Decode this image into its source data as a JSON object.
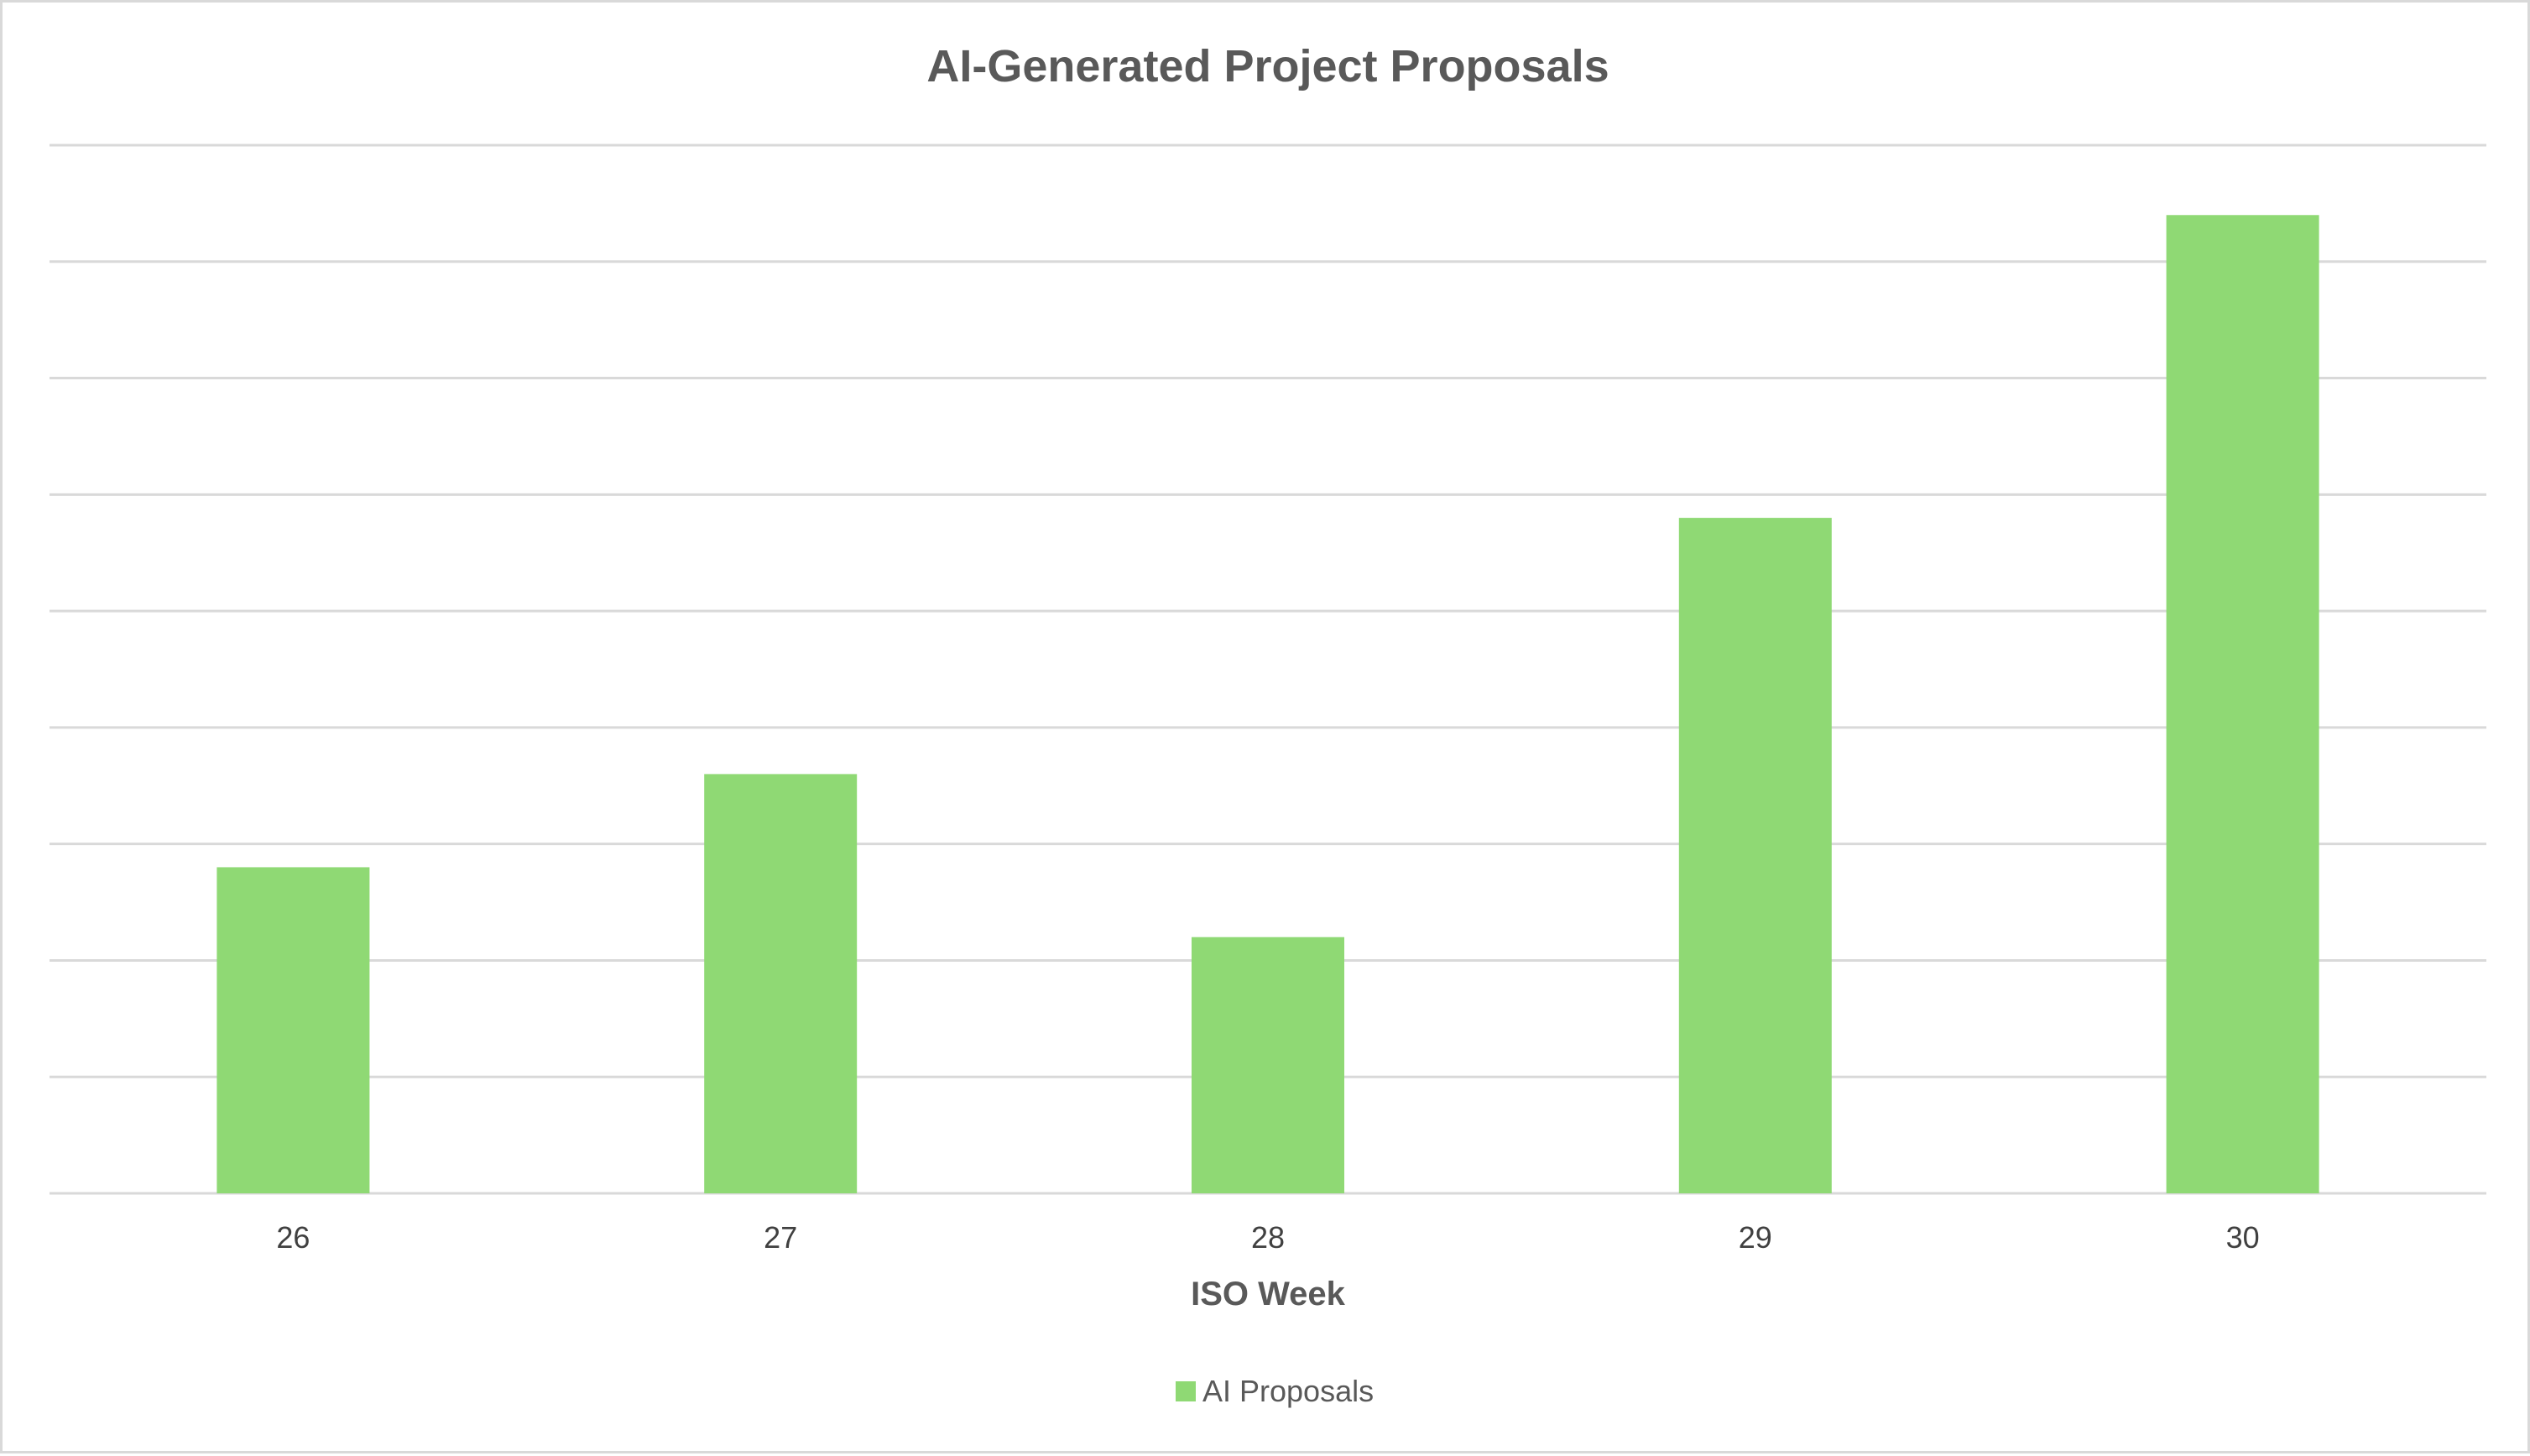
{
  "chart_data": {
    "type": "bar",
    "title": "AI-Generated Project Proposals",
    "xlabel": "ISO Week",
    "ylabel": "",
    "categories": [
      "26",
      "27",
      "28",
      "29",
      "30"
    ],
    "series": [
      {
        "name": "AI Proposals",
        "values": [
          14,
          18,
          11,
          29,
          42
        ]
      }
    ],
    "ylim": [
      0,
      45
    ],
    "y_gridline_step": 5,
    "y_tick_labels_shown": false,
    "grid": true,
    "legend": "bottom",
    "colors": {
      "bar": "#8fd974",
      "grid": "#d9d9d9",
      "axis": "#d9d9d9"
    }
  }
}
